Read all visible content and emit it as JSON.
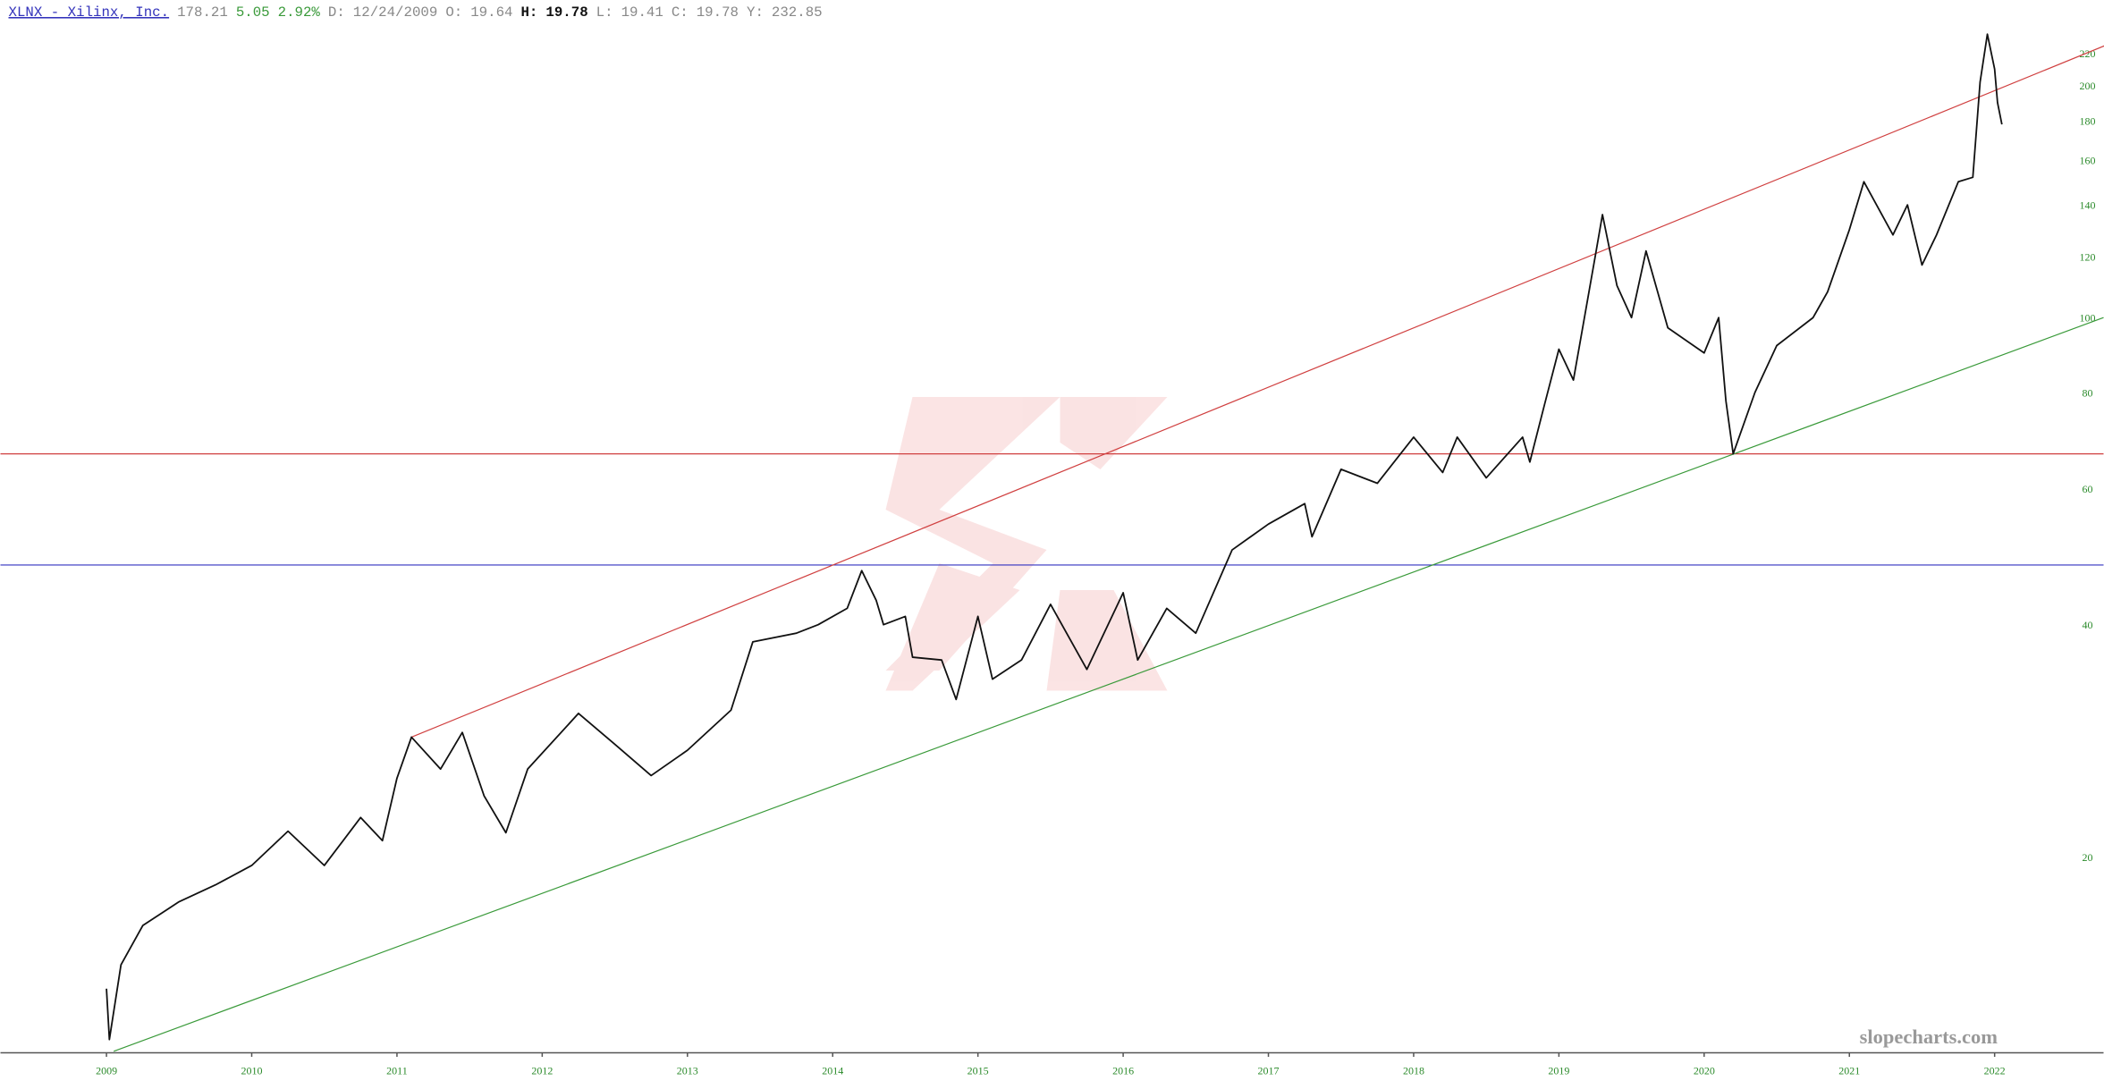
{
  "chart_data": {
    "type": "line",
    "title": "XLNX - Xilinx, Inc.",
    "header": [
      {
        "text": "178.21",
        "color": "#888888"
      },
      {
        "text": "5.05",
        "color": "#3a9a3a"
      },
      {
        "text": "2.92%",
        "color": "#3a9a3a"
      },
      {
        "text": "D:",
        "color": "#888888"
      },
      {
        "text": "12/24/2009",
        "color": "#888888"
      },
      {
        "text": "O:",
        "color": "#888888"
      },
      {
        "text": "19.64",
        "color": "#888888"
      },
      {
        "text": "H:",
        "color": "#111111"
      },
      {
        "text": "19.78",
        "color": "#111111"
      },
      {
        "text": "L:",
        "color": "#888888"
      },
      {
        "text": "19.41",
        "color": "#888888"
      },
      {
        "text": "C:",
        "color": "#888888"
      },
      {
        "text": "19.78",
        "color": "#888888"
      },
      {
        "text": "Y:",
        "color": "#888888"
      },
      {
        "text": "232.85",
        "color": "#888888"
      }
    ],
    "watermark": "slopecharts.com",
    "log_scale": true,
    "xlim": [
      2008.27,
      2022.75
    ],
    "xticks": [
      2009,
      2010,
      2011,
      2012,
      2013,
      2014,
      2015,
      2016,
      2017,
      2018,
      2019,
      2020,
      2021,
      2022
    ],
    "ylim": [
      11.15,
      258
    ],
    "yticks": [
      20,
      40,
      60,
      80,
      100,
      120,
      140,
      160,
      180,
      200,
      220
    ],
    "x": [
      2009.0,
      2009.02,
      2009.1,
      2009.25,
      2009.5,
      2009.75,
      2010.0,
      2010.25,
      2010.5,
      2010.75,
      2010.9,
      2011.0,
      2011.1,
      2011.3,
      2011.45,
      2011.6,
      2011.75,
      2011.9,
      2012.25,
      2012.5,
      2012.75,
      2013.0,
      2013.3,
      2013.45,
      2013.75,
      2013.9,
      2014.1,
      2014.2,
      2014.3,
      2014.35,
      2014.5,
      2014.55,
      2014.75,
      2014.85,
      2015.0,
      2015.1,
      2015.3,
      2015.5,
      2015.75,
      2016.0,
      2016.1,
      2016.3,
      2016.5,
      2016.75,
      2017.0,
      2017.25,
      2017.3,
      2017.5,
      2017.75,
      2018.0,
      2018.2,
      2018.3,
      2018.5,
      2018.75,
      2018.8,
      2018.9,
      2019.0,
      2019.1,
      2019.25,
      2019.3,
      2019.4,
      2019.5,
      2019.6,
      2019.75,
      2020.0,
      2020.1,
      2020.15,
      2020.2,
      2020.35,
      2020.5,
      2020.75,
      2020.85,
      2021.0,
      2021.1,
      2021.3,
      2021.4,
      2021.5,
      2021.6,
      2021.75,
      2021.85,
      2021.9,
      2021.95,
      2022.0,
      2022.02,
      2022.05
    ],
    "series": [
      {
        "color": "#111111",
        "values": [
          13.5,
          11.6,
          14.5,
          16.3,
          17.5,
          18.4,
          19.5,
          21.6,
          19.5,
          22.5,
          21,
          25.3,
          28.6,
          26,
          29,
          24,
          21.5,
          26,
          30.7,
          28,
          25.5,
          27.5,
          31,
          38,
          39,
          40,
          42,
          47,
          43,
          40,
          41,
          36.3,
          36,
          32,
          41,
          34,
          36,
          42.5,
          35,
          44,
          36,
          42,
          39,
          50,
          54,
          57.4,
          52,
          63.6,
          61,
          70,
          63,
          70,
          62,
          70,
          65,
          77,
          91,
          83,
          120,
          136,
          110,
          100,
          122,
          97,
          90,
          100,
          78,
          66.6,
          80,
          92,
          100,
          108,
          130,
          150,
          128,
          140,
          117,
          128,
          150,
          152,
          202,
          233,
          210,
          190,
          178
        ]
      }
    ],
    "trendlines": [
      {
        "color": "#d04040",
        "x": [
          2011.1,
          2023.12
        ],
        "values": [
          28.6,
          240
        ]
      },
      {
        "color": "#3a9a3a",
        "x": [
          2009.05,
          2022.75
        ],
        "values": [
          11.2,
          100
        ]
      }
    ],
    "hlines": [
      {
        "color": "#d04040",
        "value": 66.6
      },
      {
        "color": "#3030c0",
        "value": 47.8
      }
    ]
  }
}
